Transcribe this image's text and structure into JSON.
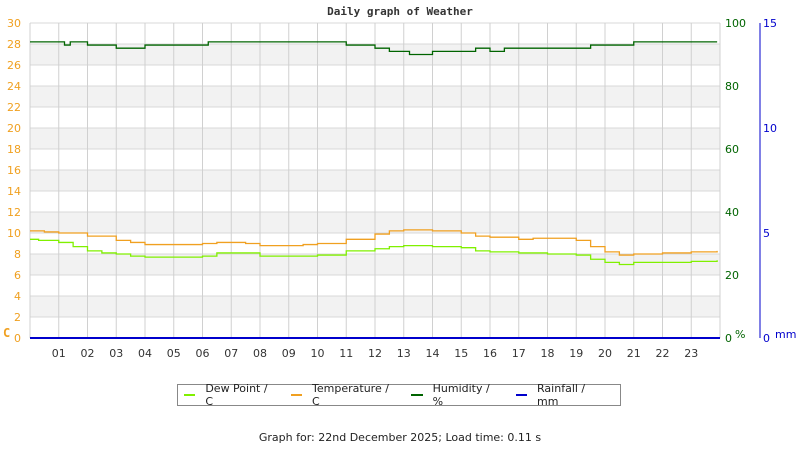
{
  "chart_data": {
    "type": "line",
    "title": "Daily graph of Weather",
    "xlabel": "",
    "x_ticks": [
      "01",
      "02",
      "03",
      "04",
      "05",
      "06",
      "07",
      "08",
      "09",
      "10",
      "11",
      "12",
      "13",
      "14",
      "15",
      "16",
      "17",
      "18",
      "19",
      "20",
      "21",
      "22",
      "23"
    ],
    "xlim": [
      0,
      24
    ],
    "grid": true,
    "legend_position": "bottom",
    "axes": {
      "left": {
        "label": "C",
        "range": [
          0,
          30
        ],
        "ticks": [
          0,
          2,
          4,
          6,
          8,
          10,
          12,
          14,
          16,
          18,
          20,
          22,
          24,
          26,
          28,
          30
        ],
        "color": "#f0a020"
      },
      "right1": {
        "label": "%",
        "range": [
          0,
          100
        ],
        "ticks": [
          0,
          20,
          40,
          60,
          80,
          100
        ],
        "color": "#006400"
      },
      "right2": {
        "label": "mm",
        "range": [
          0,
          15
        ],
        "ticks": [
          0,
          5,
          10,
          15
        ],
        "color": "#0000cc"
      }
    },
    "series": [
      {
        "name": "Dew Point / C",
        "color": "#80f000",
        "axis": "left",
        "x": [
          0,
          0.3,
          1,
          1.5,
          2,
          2.5,
          3,
          3.5,
          4,
          5,
          6,
          6.5,
          7,
          8,
          9,
          9.5,
          10,
          11,
          12,
          12.5,
          13,
          14,
          15,
          15.5,
          16,
          17,
          17.5,
          18,
          19,
          19.5,
          20,
          20.5,
          21,
          22,
          23,
          23.9
        ],
        "values": [
          9.4,
          9.3,
          9.1,
          8.7,
          8.3,
          8.1,
          8.0,
          7.8,
          7.7,
          7.7,
          7.8,
          8.1,
          8.1,
          7.8,
          7.8,
          7.8,
          7.9,
          8.3,
          8.5,
          8.7,
          8.8,
          8.7,
          8.6,
          8.3,
          8.2,
          8.1,
          8.1,
          8.0,
          7.9,
          7.5,
          7.2,
          7.0,
          7.2,
          7.2,
          7.3,
          7.4
        ]
      },
      {
        "name": "Temperature / C",
        "color": "#f0a020",
        "axis": "left",
        "x": [
          0,
          0.5,
          1,
          2,
          3,
          3.5,
          4,
          5,
          6,
          6.5,
          7,
          7.5,
          8,
          9,
          9.5,
          10,
          11,
          12,
          12.5,
          13,
          14,
          15,
          15.5,
          16,
          17,
          17.5,
          18,
          19,
          19.5,
          20,
          20.5,
          21,
          22,
          23,
          23.9
        ],
        "values": [
          10.2,
          10.1,
          10.0,
          9.7,
          9.3,
          9.1,
          8.9,
          8.9,
          9.0,
          9.1,
          9.1,
          9.0,
          8.8,
          8.8,
          8.9,
          9.0,
          9.4,
          9.9,
          10.2,
          10.3,
          10.2,
          10.0,
          9.7,
          9.6,
          9.4,
          9.5,
          9.5,
          9.3,
          8.7,
          8.2,
          7.9,
          8.0,
          8.1,
          8.2,
          8.3
        ]
      },
      {
        "name": "Humidity / %",
        "color": "#006400",
        "axis": "right1",
        "x": [
          0,
          1.2,
          1.4,
          1.6,
          2,
          3,
          3.5,
          4,
          5,
          6,
          6.2,
          7,
          8,
          9,
          10,
          11,
          12,
          12.5,
          13,
          13.2,
          14,
          15,
          15.5,
          16,
          16.5,
          17,
          18,
          19,
          19.5,
          20,
          21,
          22,
          23,
          23.9
        ],
        "values": [
          94,
          93,
          94,
          94,
          93,
          92,
          92,
          93,
          93,
          93,
          94,
          94,
          94,
          94,
          94,
          93,
          92,
          91,
          91,
          90,
          91,
          91,
          92,
          91,
          92,
          92,
          92,
          92,
          93,
          93,
          94,
          94,
          94,
          94
        ]
      },
      {
        "name": "Rainfall / mm",
        "color": "#0000cc",
        "axis": "right2",
        "x": [
          0,
          24
        ],
        "values": [
          0,
          0
        ]
      }
    ]
  },
  "legend": {
    "items": [
      {
        "label": "Dew Point / C",
        "color": "#80f000"
      },
      {
        "label": "Temperature / C",
        "color": "#f0a020"
      },
      {
        "label": "Humidity / %",
        "color": "#006400"
      },
      {
        "label": "Rainfall / mm",
        "color": "#0000cc"
      }
    ]
  },
  "footer": "Graph for: 22nd December 2025; Load time: 0.11 s"
}
